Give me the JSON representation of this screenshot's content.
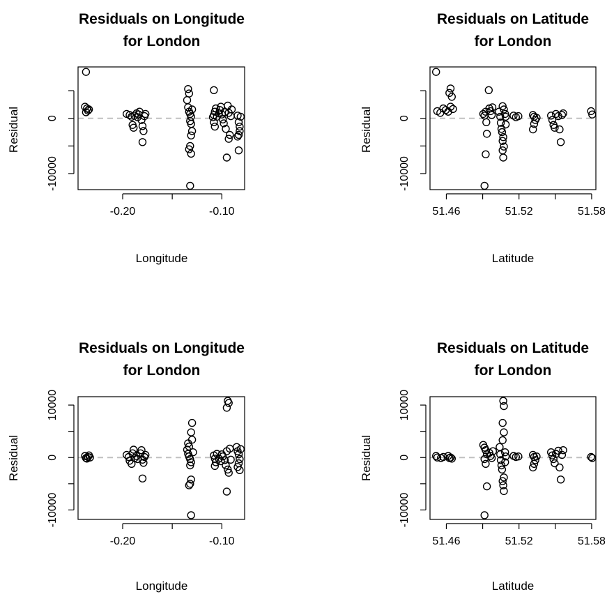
{
  "chart_data": [
    {
      "type": "scatter",
      "title": [
        "Residuals on Longitude",
        "for London"
      ],
      "xlabel": "Longitude",
      "ylabel": "Residual",
      "xlim": [
        -0.245,
        -0.077
      ],
      "ylim": [
        -12900,
        9300
      ],
      "xticks": [
        -0.2,
        -0.15,
        -0.1
      ],
      "xtick_labels": [
        "-0.20",
        "",
        "-0.10"
      ],
      "yticks": [
        -10000,
        -5000,
        0,
        5000
      ],
      "ytick_labels": [
        "-10000",
        "",
        "0",
        ""
      ],
      "reference_line": 0,
      "points": [
        [
          -0.237,
          8400
        ],
        [
          -0.238,
          2100
        ],
        [
          -0.236,
          1800
        ],
        [
          -0.235,
          1400
        ],
        [
          -0.237,
          1100
        ],
        [
          -0.234,
          1600
        ],
        [
          -0.196,
          800
        ],
        [
          -0.193,
          600
        ],
        [
          -0.191,
          300
        ],
        [
          -0.19,
          -1200
        ],
        [
          -0.189,
          -1700
        ],
        [
          -0.188,
          500
        ],
        [
          -0.186,
          900
        ],
        [
          -0.185,
          200
        ],
        [
          -0.184,
          700
        ],
        [
          -0.183,
          1200
        ],
        [
          -0.181,
          -300
        ],
        [
          -0.18,
          -1400
        ],
        [
          -0.179,
          -2300
        ],
        [
          -0.18,
          -4300
        ],
        [
          -0.178,
          400
        ],
        [
          -0.177,
          800
        ],
        [
          -0.134,
          5300
        ],
        [
          -0.133,
          4500
        ],
        [
          -0.135,
          3300
        ],
        [
          -0.134,
          2000
        ],
        [
          -0.133,
          1200
        ],
        [
          -0.132,
          800
        ],
        [
          -0.131,
          300
        ],
        [
          -0.132,
          -500
        ],
        [
          -0.131,
          -1000
        ],
        [
          -0.13,
          -2300
        ],
        [
          -0.131,
          -3100
        ],
        [
          -0.132,
          -5000
        ],
        [
          -0.133,
          -5600
        ],
        [
          -0.131,
          -6400
        ],
        [
          -0.132,
          -12200
        ],
        [
          -0.13,
          1600
        ],
        [
          -0.108,
          5100
        ],
        [
          -0.106,
          1800
        ],
        [
          -0.107,
          1200
        ],
        [
          -0.108,
          600
        ],
        [
          -0.109,
          200
        ],
        [
          -0.108,
          -700
        ],
        [
          -0.107,
          -1500
        ],
        [
          -0.105,
          300
        ],
        [
          -0.103,
          900
        ],
        [
          -0.102,
          1500
        ],
        [
          -0.101,
          2100
        ],
        [
          -0.1,
          700
        ],
        [
          -0.099,
          -200
        ],
        [
          -0.098,
          -900
        ],
        [
          -0.097,
          1100
        ],
        [
          -0.096,
          -1900
        ],
        [
          -0.095,
          -7100
        ],
        [
          -0.094,
          2300
        ],
        [
          -0.093,
          1000
        ],
        [
          -0.092,
          -3000
        ],
        [
          -0.093,
          -3700
        ],
        [
          -0.091,
          400
        ],
        [
          -0.09,
          1600
        ],
        [
          -0.084,
          500
        ],
        [
          -0.083,
          -700
        ],
        [
          -0.082,
          -1500
        ],
        [
          -0.082,
          -2300
        ],
        [
          -0.083,
          -3000
        ],
        [
          -0.084,
          -3300
        ],
        [
          -0.083,
          -5800
        ],
        [
          -0.081,
          300
        ]
      ]
    },
    {
      "type": "scatter",
      "title": [
        "Residuals on Latitude",
        "for London"
      ],
      "xlabel": "Latitude",
      "ylabel": "Residual",
      "xlim": [
        51.4465,
        51.5835
      ],
      "ylim": [
        -12900,
        9300
      ],
      "xticks": [
        51.46,
        51.49,
        51.52,
        51.55,
        51.58
      ],
      "xtick_labels": [
        "51.46",
        "",
        "51.52",
        "",
        "51.58"
      ],
      "yticks": [
        -10000,
        -5000,
        0,
        5000
      ],
      "ytick_labels": [
        "-10000",
        "",
        "0",
        ""
      ],
      "reference_line": 0,
      "points": [
        [
          51.4515,
          8400
        ],
        [
          51.4525,
          1300
        ],
        [
          51.455,
          1000
        ],
        [
          51.4575,
          1800
        ],
        [
          51.4595,
          1500
        ],
        [
          51.4635,
          5400
        ],
        [
          51.4625,
          4600
        ],
        [
          51.4645,
          3900
        ],
        [
          51.4635,
          2100
        ],
        [
          51.4615,
          1200
        ],
        [
          51.4655,
          1700
        ],
        [
          51.4905,
          800
        ],
        [
          51.4915,
          500
        ],
        [
          51.4925,
          1200
        ],
        [
          51.493,
          -700
        ],
        [
          51.4935,
          -2800
        ],
        [
          51.4925,
          -6500
        ],
        [
          51.4915,
          -12200
        ],
        [
          51.495,
          5100
        ],
        [
          51.4955,
          1800
        ],
        [
          51.4965,
          1300
        ],
        [
          51.4975,
          600
        ],
        [
          51.498,
          2000
        ],
        [
          51.5035,
          1200
        ],
        [
          51.5045,
          300
        ],
        [
          51.505,
          -800
        ],
        [
          51.5055,
          -1900
        ],
        [
          51.506,
          -2500
        ],
        [
          51.507,
          -3400
        ],
        [
          51.5065,
          -4100
        ],
        [
          51.5075,
          -5100
        ],
        [
          51.5065,
          -5800
        ],
        [
          51.507,
          -7100
        ],
        [
          51.5065,
          2200
        ],
        [
          51.5075,
          1600
        ],
        [
          51.5085,
          800
        ],
        [
          51.509,
          300
        ],
        [
          51.509,
          -1100
        ],
        [
          51.5155,
          500
        ],
        [
          51.5175,
          200
        ],
        [
          51.5195,
          400
        ],
        [
          51.5315,
          600
        ],
        [
          51.5325,
          300
        ],
        [
          51.5335,
          -300
        ],
        [
          51.5325,
          -1000
        ],
        [
          51.5315,
          -2000
        ],
        [
          51.5345,
          100
        ],
        [
          51.5465,
          500
        ],
        [
          51.5475,
          -300
        ],
        [
          51.5485,
          -1200
        ],
        [
          51.5495,
          -1700
        ],
        [
          51.5505,
          800
        ],
        [
          51.5525,
          400
        ],
        [
          51.5535,
          -2000
        ],
        [
          51.5545,
          -4300
        ],
        [
          51.5555,
          600
        ],
        [
          51.5565,
          900
        ],
        [
          51.5795,
          1300
        ],
        [
          51.5805,
          700
        ]
      ]
    },
    {
      "type": "scatter",
      "title": [
        "Residuals on Longitude",
        "for London"
      ],
      "xlabel": "Longitude",
      "ylabel": "Residual",
      "xlim": [
        -0.245,
        -0.077
      ],
      "ylim": [
        -11800,
        11600
      ],
      "xticks": [
        -0.2,
        -0.15,
        -0.1
      ],
      "xtick_labels": [
        "-0.20",
        "",
        "-0.10"
      ],
      "yticks": [
        -10000,
        -5000,
        0,
        5000,
        10000
      ],
      "ytick_labels": [
        "-10000",
        "",
        "0",
        "",
        "10000"
      ],
      "reference_line": 0,
      "points": [
        [
          -0.238,
          300
        ],
        [
          -0.237,
          -100
        ],
        [
          -0.235,
          100
        ],
        [
          -0.236,
          -200
        ],
        [
          -0.234,
          400
        ],
        [
          -0.233,
          0
        ],
        [
          -0.196,
          500
        ],
        [
          -0.194,
          100
        ],
        [
          -0.193,
          -600
        ],
        [
          -0.191,
          -1200
        ],
        [
          -0.19,
          800
        ],
        [
          -0.189,
          1500
        ],
        [
          -0.188,
          -100
        ],
        [
          -0.186,
          300
        ],
        [
          -0.185,
          -300
        ],
        [
          -0.182,
          800
        ],
        [
          -0.181,
          1400
        ],
        [
          -0.18,
          -400
        ],
        [
          -0.179,
          -1000
        ],
        [
          -0.18,
          -4000
        ],
        [
          -0.178,
          100
        ],
        [
          -0.177,
          500
        ],
        [
          -0.134,
          2700
        ],
        [
          -0.133,
          2100
        ],
        [
          -0.135,
          1500
        ],
        [
          -0.134,
          700
        ],
        [
          -0.133,
          200
        ],
        [
          -0.132,
          -300
        ],
        [
          -0.131,
          -900
        ],
        [
          -0.132,
          -1500
        ],
        [
          -0.131,
          -4200
        ],
        [
          -0.132,
          -5000
        ],
        [
          -0.133,
          -5300
        ],
        [
          -0.131,
          -11000
        ],
        [
          -0.13,
          6600
        ],
        [
          -0.131,
          4800
        ],
        [
          -0.13,
          3400
        ],
        [
          -0.129,
          1000
        ],
        [
          -0.108,
          400
        ],
        [
          -0.107,
          -200
        ],
        [
          -0.106,
          -900
        ],
        [
          -0.107,
          -1600
        ],
        [
          -0.105,
          700
        ],
        [
          -0.103,
          -200
        ],
        [
          -0.101,
          -700
        ],
        [
          -0.1,
          600
        ],
        [
          -0.099,
          200
        ],
        [
          -0.097,
          -500
        ],
        [
          -0.096,
          -1500
        ],
        [
          -0.095,
          1200
        ],
        [
          -0.094,
          10800
        ],
        [
          -0.093,
          10400
        ],
        [
          -0.095,
          9500
        ],
        [
          -0.094,
          -2300
        ],
        [
          -0.093,
          -2900
        ],
        [
          -0.095,
          -6500
        ],
        [
          -0.092,
          1700
        ],
        [
          -0.091,
          -400
        ],
        [
          -0.085,
          2000
        ],
        [
          -0.084,
          1200
        ],
        [
          -0.083,
          600
        ],
        [
          -0.082,
          -300
        ],
        [
          -0.083,
          -1100
        ],
        [
          -0.084,
          -1800
        ],
        [
          -0.082,
          -2400
        ],
        [
          -0.081,
          1600
        ]
      ]
    },
    {
      "type": "scatter",
      "title": [
        "Residuals on Latitude",
        "for London"
      ],
      "xlabel": "Latitude",
      "ylabel": "Residual",
      "xlim": [
        51.4465,
        51.5835
      ],
      "ylim": [
        -11800,
        11600
      ],
      "xticks": [
        51.46,
        51.49,
        51.52,
        51.55,
        51.58
      ],
      "xtick_labels": [
        "51.46",
        "",
        "51.52",
        "",
        "51.58"
      ],
      "yticks": [
        -10000,
        -5000,
        0,
        5000,
        10000
      ],
      "ytick_labels": [
        "-10000",
        "",
        "0",
        "",
        "10000"
      ],
      "reference_line": 0,
      "points": [
        [
          51.4515,
          300
        ],
        [
          51.4525,
          0
        ],
        [
          51.4555,
          -100
        ],
        [
          51.4575,
          100
        ],
        [
          51.4615,
          300
        ],
        [
          51.4625,
          -100
        ],
        [
          51.4635,
          0
        ],
        [
          51.4645,
          -200
        ],
        [
          51.4905,
          2400
        ],
        [
          51.4915,
          1900
        ],
        [
          51.4925,
          1400
        ],
        [
          51.4935,
          600
        ],
        [
          51.4915,
          -300
        ],
        [
          51.4925,
          -1200
        ],
        [
          51.4935,
          -5500
        ],
        [
          51.4915,
          -11000
        ],
        [
          51.4955,
          900
        ],
        [
          51.4965,
          300
        ],
        [
          51.4975,
          -100
        ],
        [
          51.4985,
          1200
        ],
        [
          51.504,
          2000
        ],
        [
          51.5045,
          600
        ],
        [
          51.505,
          -500
        ],
        [
          51.5055,
          -1500
        ],
        [
          51.506,
          -2300
        ],
        [
          51.507,
          10800
        ],
        [
          51.5075,
          9800
        ],
        [
          51.5065,
          6600
        ],
        [
          51.5075,
          4800
        ],
        [
          51.5065,
          3300
        ],
        [
          51.5075,
          -3800
        ],
        [
          51.5065,
          -4500
        ],
        [
          51.507,
          -5300
        ],
        [
          51.5075,
          -6400
        ],
        [
          51.5085,
          1000
        ],
        [
          51.509,
          200
        ],
        [
          51.5085,
          -900
        ],
        [
          51.5155,
          300
        ],
        [
          51.5175,
          100
        ],
        [
          51.5195,
          200
        ],
        [
          51.5315,
          500
        ],
        [
          51.5325,
          100
        ],
        [
          51.5335,
          -500
        ],
        [
          51.5325,
          -1200
        ],
        [
          51.5315,
          -1900
        ],
        [
          51.5345,
          200
        ],
        [
          51.5465,
          1000
        ],
        [
          51.5475,
          400
        ],
        [
          51.5485,
          -300
        ],
        [
          51.5495,
          -1100
        ],
        [
          51.5505,
          700
        ],
        [
          51.5525,
          1300
        ],
        [
          51.5535,
          -1900
        ],
        [
          51.5545,
          -4200
        ],
        [
          51.5555,
          500
        ],
        [
          51.5565,
          1400
        ],
        [
          51.5795,
          100
        ],
        [
          51.5805,
          -100
        ]
      ]
    }
  ]
}
